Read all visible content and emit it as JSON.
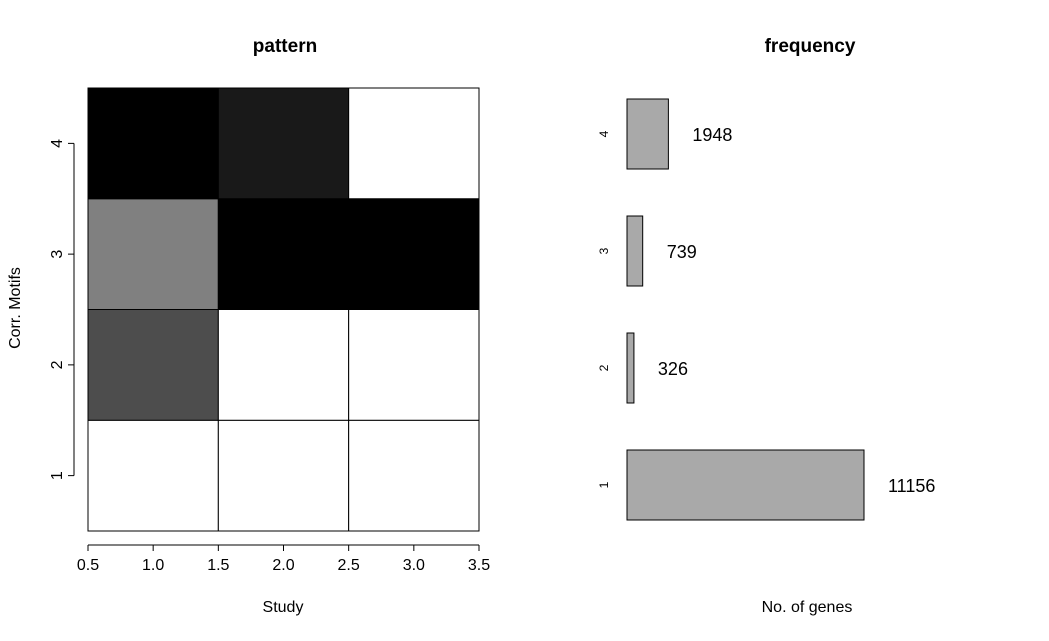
{
  "chart_data": [
    {
      "type": "heatmap",
      "title": "pattern",
      "xlabel": "Study",
      "ylabel": "Corr. Motifs",
      "xlim": [
        0.5,
        3.5
      ],
      "ylim": [
        0.5,
        4.5
      ],
      "x_ticks": [
        "0.5",
        "1.0",
        "1.5",
        "2.0",
        "2.5",
        "3.0",
        "3.5"
      ],
      "y_ticks": [
        "1",
        "2",
        "3",
        "4"
      ],
      "x_categories": [
        1,
        2,
        3
      ],
      "y_categories": [
        1,
        2,
        3,
        4
      ],
      "colormap": "grayscale (0 = white, 1 = black)",
      "values": [
        [
          0.0,
          0.0,
          0.0
        ],
        [
          0.7,
          0.0,
          0.0
        ],
        [
          0.5,
          1.0,
          1.0
        ],
        [
          1.0,
          0.9,
          0.0
        ]
      ]
    },
    {
      "type": "bar",
      "orientation": "horizontal",
      "title": "frequency",
      "xlabel": "No. of genes",
      "categories": [
        "1",
        "2",
        "3",
        "4"
      ],
      "values": [
        11156,
        326,
        739,
        1948
      ],
      "data_labels": [
        "11156",
        "326",
        "739",
        "1948"
      ],
      "bar_color": "#a9a9a9"
    }
  ]
}
